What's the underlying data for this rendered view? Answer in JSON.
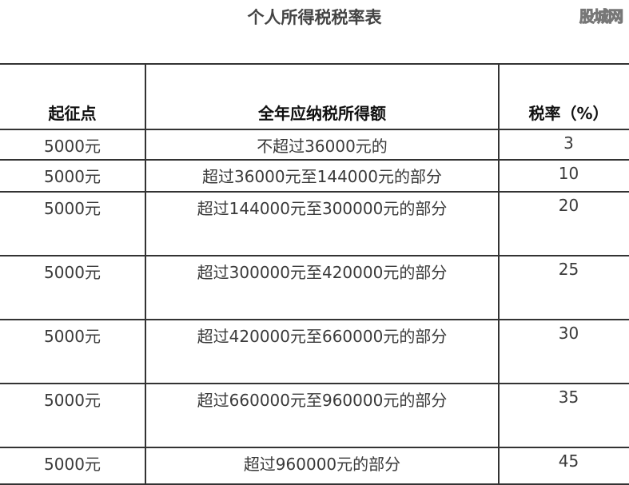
{
  "title": "个人所得税税率表",
  "watermark": "股城网",
  "table": {
    "headers": [
      "起征点",
      "全年应纳税所得额",
      "税率（%）"
    ],
    "rows": [
      [
        "5000元",
        "不超过36000元的",
        "3"
      ],
      [
        "5000元",
        "超过36000元至144000元的部分",
        "10"
      ],
      [
        "5000元",
        "超过144000元至300000元的部分",
        "20"
      ],
      [
        "5000元",
        "超过300000元至420000元的部分",
        "25"
      ],
      [
        "5000元",
        "超过420000元至660000元的部分",
        "30"
      ],
      [
        "5000元",
        "超过660000元至960000元的部分",
        "35"
      ],
      [
        "5000元",
        "超过960000元的部分",
        "45"
      ]
    ]
  }
}
